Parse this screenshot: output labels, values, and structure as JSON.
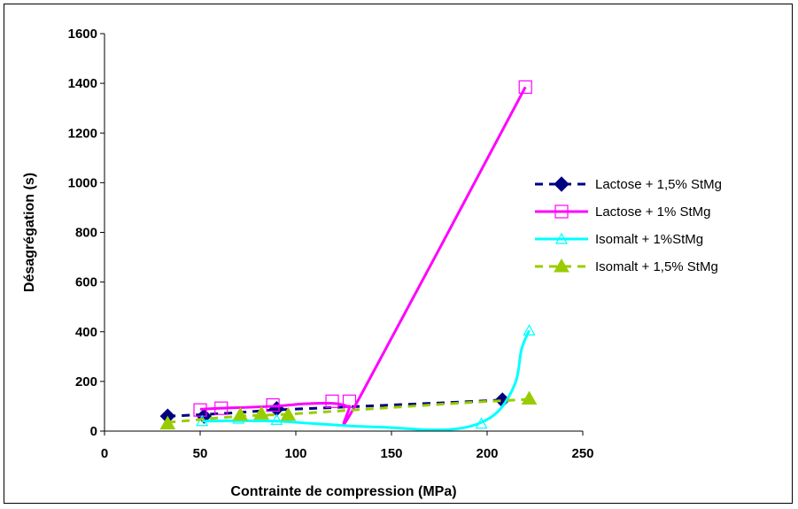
{
  "chart_data": {
    "type": "scatter",
    "title": "",
    "xlabel": "Contrainte de compression (MPa)",
    "ylabel": "Désagrégation (s)",
    "xlim": [
      0,
      250
    ],
    "ylim": [
      0,
      1600
    ],
    "xticks": [
      "0",
      "50",
      "100",
      "150",
      "200",
      "250"
    ],
    "yticks": [
      "0",
      "200",
      "400",
      "600",
      "800",
      "1000",
      "1200",
      "1400",
      "1600"
    ],
    "grid": false,
    "legend_position": "right",
    "series": [
      {
        "name": "Lactose + 1,5% StMg",
        "color": "#000080",
        "marker": "diamond-filled",
        "line": "dashed",
        "points": [
          [
            33,
            60
          ],
          [
            52,
            60
          ],
          [
            90,
            90
          ],
          [
            208,
            125
          ]
        ],
        "trend": [
          [
            33,
            60
          ],
          [
            60,
            70
          ],
          [
            90,
            85
          ],
          [
            120,
            95
          ],
          [
            150,
            105
          ],
          [
            180,
            115
          ],
          [
            208,
            125
          ]
        ]
      },
      {
        "name": "Lactose + 1% StMg",
        "color": "#ff00ff",
        "marker": "square-open",
        "line": "solid",
        "points": [
          [
            50,
            85
          ],
          [
            61,
            92
          ],
          [
            88,
            105
          ],
          [
            119,
            120
          ],
          [
            128,
            120
          ],
          [
            220,
            1385
          ]
        ],
        "trend": [
          [
            50,
            88
          ],
          [
            61,
            92
          ],
          [
            88,
            100
          ],
          [
            105,
            110
          ],
          [
            119,
            112
          ],
          [
            125,
            105
          ],
          [
            128,
            100
          ],
          [
            133,
            130
          ],
          [
            220,
            1385
          ]
        ]
      },
      {
        "name": "Isomalt + 1%StMg",
        "color": "#00ffff",
        "marker": "triangle-open",
        "line": "solid",
        "points": [
          [
            51,
            40
          ],
          [
            70,
            50
          ],
          [
            90,
            45
          ],
          [
            197,
            30
          ],
          [
            222,
            405
          ]
        ],
        "trend": [
          [
            51,
            40
          ],
          [
            70,
            42
          ],
          [
            90,
            40
          ],
          [
            110,
            30
          ],
          [
            130,
            20
          ],
          [
            150,
            14
          ],
          [
            170,
            5
          ],
          [
            185,
            10
          ],
          [
            197,
            35
          ],
          [
            207,
            90
          ],
          [
            215,
            200
          ],
          [
            218,
            330
          ],
          [
            222,
            405
          ]
        ]
      },
      {
        "name": "Isomalt + 1,5% StMg",
        "color": "#99cc00",
        "marker": "triangle-filled",
        "line": "dashed",
        "points": [
          [
            33,
            30
          ],
          [
            71,
            65
          ],
          [
            82,
            70
          ],
          [
            96,
            65
          ],
          [
            222,
            130
          ]
        ],
        "trend": [
          [
            33,
            35
          ],
          [
            71,
            60
          ],
          [
            96,
            68
          ],
          [
            130,
            85
          ],
          [
            160,
            100
          ],
          [
            190,
            115
          ],
          [
            222,
            128
          ]
        ]
      }
    ]
  }
}
